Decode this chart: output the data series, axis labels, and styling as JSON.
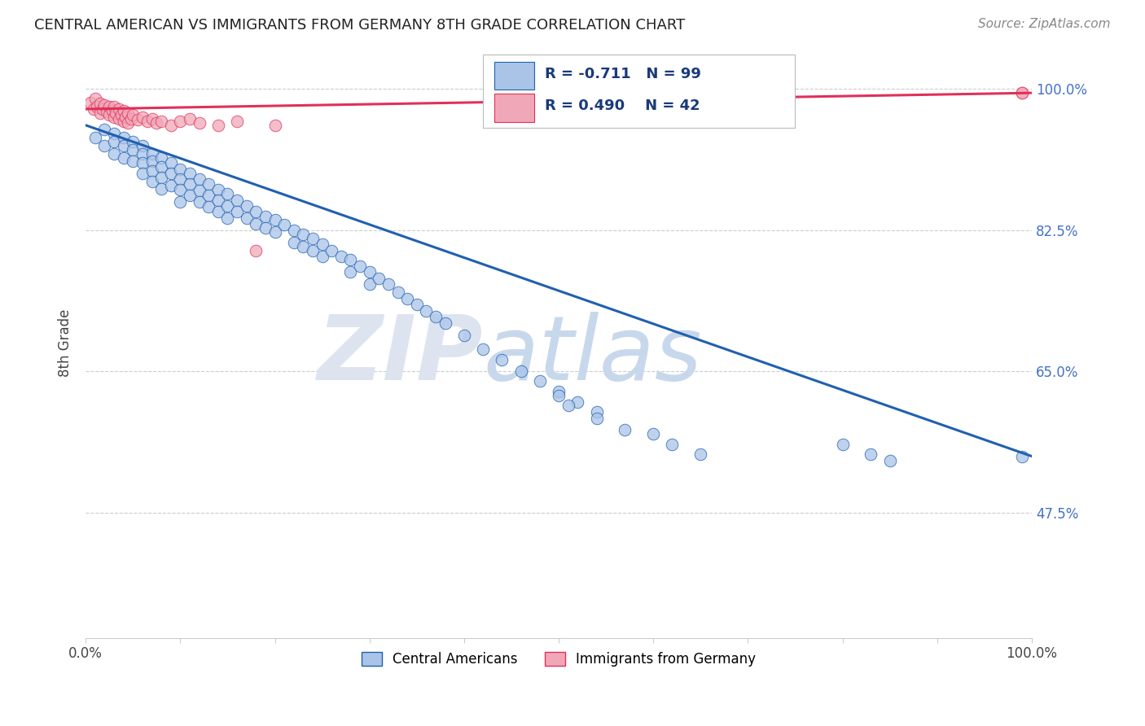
{
  "title": "CENTRAL AMERICAN VS IMMIGRANTS FROM GERMANY 8TH GRADE CORRELATION CHART",
  "source": "Source: ZipAtlas.com",
  "ylabel": "8th Grade",
  "xlim": [
    0.0,
    1.0
  ],
  "ylim": [
    0.32,
    1.05
  ],
  "ytick_positions": [
    0.475,
    0.65,
    0.825,
    1.0
  ],
  "ytick_labels": [
    "47.5%",
    "65.0%",
    "82.5%",
    "100.0%"
  ],
  "legend_R_blue": "-0.711",
  "legend_N_blue": "99",
  "legend_R_pink": "0.490",
  "legend_N_pink": "42",
  "blue_color": "#aac4e8",
  "pink_color": "#f0a8b8",
  "line_blue_color": "#2060b0",
  "line_pink_color": "#e0305a",
  "blue_line_x0": 0.0,
  "blue_line_y0": 0.955,
  "blue_line_x1": 1.0,
  "blue_line_y1": 0.545,
  "pink_line_x0": 0.0,
  "pink_line_y0": 0.975,
  "pink_line_x1": 1.0,
  "pink_line_y1": 0.995,
  "blue_x": [
    0.01,
    0.02,
    0.02,
    0.03,
    0.03,
    0.03,
    0.04,
    0.04,
    0.04,
    0.05,
    0.05,
    0.05,
    0.06,
    0.06,
    0.06,
    0.06,
    0.07,
    0.07,
    0.07,
    0.07,
    0.08,
    0.08,
    0.08,
    0.08,
    0.09,
    0.09,
    0.09,
    0.1,
    0.1,
    0.1,
    0.1,
    0.11,
    0.11,
    0.11,
    0.12,
    0.12,
    0.12,
    0.13,
    0.13,
    0.13,
    0.14,
    0.14,
    0.14,
    0.15,
    0.15,
    0.15,
    0.16,
    0.16,
    0.17,
    0.17,
    0.18,
    0.18,
    0.19,
    0.19,
    0.2,
    0.2,
    0.21,
    0.22,
    0.22,
    0.23,
    0.23,
    0.24,
    0.24,
    0.25,
    0.25,
    0.26,
    0.27,
    0.28,
    0.28,
    0.29,
    0.3,
    0.3,
    0.31,
    0.32,
    0.33,
    0.34,
    0.35,
    0.36,
    0.37,
    0.38,
    0.4,
    0.42,
    0.44,
    0.46,
    0.48,
    0.5,
    0.52,
    0.54,
    0.6,
    0.62,
    0.65,
    0.5,
    0.51,
    0.54,
    0.57,
    0.8,
    0.83,
    0.85,
    0.99
  ],
  "blue_y": [
    0.94,
    0.95,
    0.93,
    0.945,
    0.935,
    0.92,
    0.94,
    0.93,
    0.915,
    0.935,
    0.925,
    0.91,
    0.93,
    0.92,
    0.908,
    0.895,
    0.92,
    0.91,
    0.898,
    0.885,
    0.915,
    0.903,
    0.89,
    0.876,
    0.908,
    0.895,
    0.88,
    0.9,
    0.888,
    0.875,
    0.86,
    0.895,
    0.882,
    0.868,
    0.888,
    0.874,
    0.86,
    0.882,
    0.868,
    0.854,
    0.875,
    0.862,
    0.848,
    0.87,
    0.855,
    0.84,
    0.862,
    0.848,
    0.855,
    0.84,
    0.848,
    0.833,
    0.842,
    0.828,
    0.838,
    0.823,
    0.832,
    0.825,
    0.81,
    0.82,
    0.805,
    0.815,
    0.8,
    0.808,
    0.793,
    0.8,
    0.793,
    0.788,
    0.773,
    0.78,
    0.773,
    0.758,
    0.765,
    0.758,
    0.748,
    0.74,
    0.733,
    0.725,
    0.718,
    0.71,
    0.695,
    0.678,
    0.665,
    0.65,
    0.638,
    0.625,
    0.612,
    0.6,
    0.573,
    0.56,
    0.548,
    0.62,
    0.608,
    0.592,
    0.578,
    0.56,
    0.548,
    0.54,
    0.545
  ],
  "pink_x": [
    0.005,
    0.008,
    0.01,
    0.012,
    0.015,
    0.015,
    0.018,
    0.02,
    0.022,
    0.025,
    0.025,
    0.028,
    0.03,
    0.03,
    0.032,
    0.035,
    0.035,
    0.038,
    0.04,
    0.04,
    0.042,
    0.045,
    0.045,
    0.048,
    0.05,
    0.055,
    0.06,
    0.065,
    0.07,
    0.075,
    0.08,
    0.09,
    0.1,
    0.11,
    0.12,
    0.14,
    0.16,
    0.18,
    0.2,
    0.65,
    0.99,
    0.99
  ],
  "pink_y": [
    0.983,
    0.975,
    0.988,
    0.978,
    0.982,
    0.97,
    0.975,
    0.98,
    0.972,
    0.978,
    0.968,
    0.973,
    0.978,
    0.965,
    0.97,
    0.975,
    0.963,
    0.968,
    0.973,
    0.96,
    0.965,
    0.97,
    0.958,
    0.963,
    0.968,
    0.962,
    0.965,
    0.96,
    0.963,
    0.958,
    0.96,
    0.955,
    0.96,
    0.963,
    0.958,
    0.955,
    0.96,
    0.8,
    0.955,
    0.99,
    0.995,
    0.995
  ]
}
